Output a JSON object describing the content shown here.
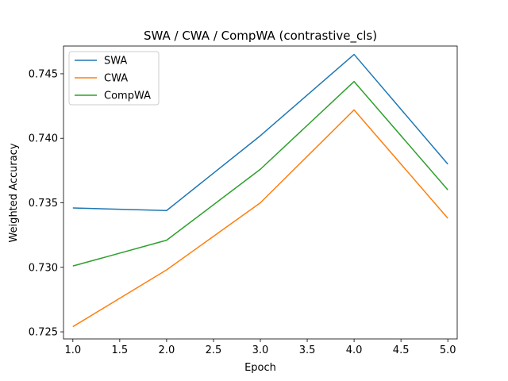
{
  "chart_data": {
    "type": "line",
    "title": "SWA / CWA / CompWA (contrastive_cls)",
    "xlabel": "Epoch",
    "ylabel": "Weighted Accuracy",
    "x": [
      1.0,
      2.0,
      3.0,
      4.0,
      5.0
    ],
    "xlim": [
      0.9,
      5.1
    ],
    "ylim": [
      0.72445,
      0.74715
    ],
    "xticks": [
      1.0,
      1.5,
      2.0,
      2.5,
      3.0,
      3.5,
      4.0,
      4.5,
      5.0
    ],
    "xtick_labels": [
      "1.0",
      "1.5",
      "2.0",
      "2.5",
      "3.0",
      "3.5",
      "4.0",
      "4.5",
      "5.0"
    ],
    "yticks": [
      0.725,
      0.73,
      0.735,
      0.74,
      0.745
    ],
    "ytick_labels": [
      "0.725",
      "0.730",
      "0.735",
      "0.740",
      "0.745"
    ],
    "grid": false,
    "legend_position": "top-left",
    "series": [
      {
        "name": "SWA",
        "color": "#1f77b4",
        "values": [
          0.7346,
          0.7344,
          0.7402,
          0.7465,
          0.738
        ]
      },
      {
        "name": "CWA",
        "color": "#ff7f0e",
        "values": [
          0.7254,
          0.7298,
          0.735,
          0.7422,
          0.7338
        ]
      },
      {
        "name": "CompWA",
        "color": "#2ca02c",
        "values": [
          0.7301,
          0.7321,
          0.7376,
          0.7444,
          0.736
        ]
      }
    ]
  }
}
